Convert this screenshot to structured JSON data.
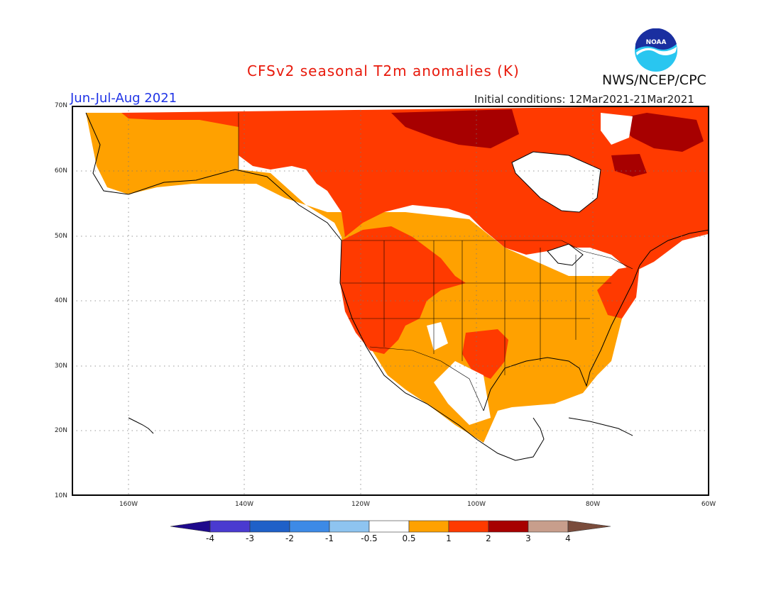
{
  "header": {
    "title": "CFSv2 seasonal T2m anomalies (K)",
    "season": "Jun-Jul-Aug 2021",
    "initial_conditions": "Initial conditions: 12Mar2021-21Mar2021",
    "agency": "NWS/NCEP/CPC",
    "logo_text": "NOAA"
  },
  "map": {
    "lat_labels": [
      "70N",
      "60N",
      "50N",
      "40N",
      "30N",
      "20N",
      "10N"
    ],
    "lon_labels": [
      "160W",
      "140W",
      "120W",
      "100W",
      "80W",
      "60W"
    ]
  },
  "colorbar": {
    "labels": [
      "-4",
      "-3",
      "-2",
      "-1",
      "-0.5",
      "0.5",
      "1",
      "2",
      "3",
      "4"
    ],
    "bins": [
      {
        "range": "< -4",
        "color": "#1e0a8c"
      },
      {
        "range": "-4 to -3",
        "color": "#4a3ad0"
      },
      {
        "range": "-3 to -2",
        "color": "#1f60c8"
      },
      {
        "range": "-2 to -1",
        "color": "#3d8ae6"
      },
      {
        "range": "-1 to -0.5",
        "color": "#8ec4f0"
      },
      {
        "range": "-0.5 to 0.5",
        "color": "#ffffff"
      },
      {
        "range": "0.5 to 1",
        "color": "#ffa100"
      },
      {
        "range": "1 to 2",
        "color": "#ff3a00"
      },
      {
        "range": "2 to 3",
        "color": "#a70000"
      },
      {
        "range": "3 to 4",
        "color": "#c89e8c"
      },
      {
        "range": "> 4",
        "color": "#7a4c3c"
      }
    ]
  }
}
